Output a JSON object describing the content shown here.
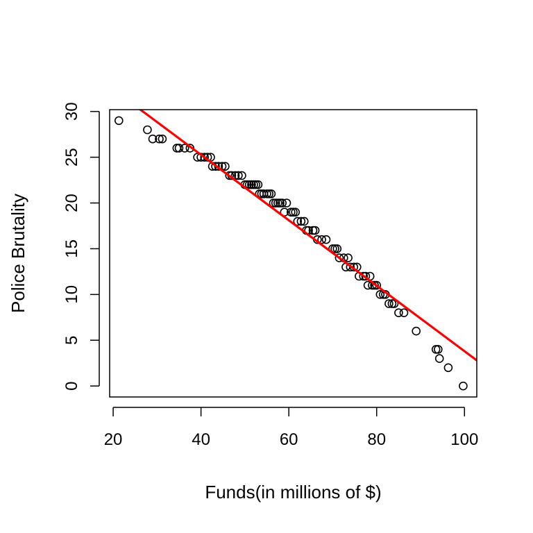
{
  "chart_data": {
    "type": "scatter",
    "title": "",
    "xlabel": "Funds(in millions of $)",
    "ylabel": "Police Brutality",
    "xlim": [
      19.2,
      102.8
    ],
    "ylim": [
      -1.2,
      30.2
    ],
    "xticks": [
      20,
      40,
      60,
      80,
      100
    ],
    "yticks": [
      0,
      5,
      10,
      15,
      20,
      25,
      30
    ],
    "grid": false,
    "legend": "none",
    "point_color": "#000000",
    "fit_line": {
      "color": "#ff0000",
      "x": [
        19.2,
        102.8
      ],
      "y": [
        32.7,
        2.8
      ]
    },
    "x": [
      21.3,
      27.8,
      29.0,
      30.5,
      31.2,
      34.5,
      35.0,
      36.3,
      37.5,
      39.2,
      40.0,
      40.8,
      41.5,
      42.2,
      42.6,
      43.3,
      44.0,
      44.8,
      45.5,
      46.5,
      47.0,
      47.8,
      48.5,
      49.3,
      50.0,
      50.5,
      51.0,
      51.5,
      52.0,
      52.5,
      53.0,
      53.3,
      53.8,
      54.3,
      55.0,
      55.5,
      56.0,
      56.5,
      57.0,
      57.5,
      58.0,
      58.5,
      59.0,
      59.5,
      60.5,
      61.0,
      61.5,
      62.0,
      62.8,
      63.5,
      64.0,
      64.5,
      65.5,
      66.0,
      66.5,
      67.5,
      68.5,
      70.0,
      70.5,
      71.0,
      71.5,
      72.5,
      73.0,
      73.5,
      74.0,
      74.8,
      75.5,
      76.0,
      77.0,
      77.5,
      78.0,
      78.5,
      79.0,
      79.5,
      80.0,
      80.8,
      81.5,
      82.0,
      82.8,
      83.5,
      84.0,
      85.0,
      86.2,
      89.0,
      93.5,
      94.0,
      94.3,
      96.3,
      99.7
    ],
    "y": [
      29,
      28,
      27,
      27,
      27,
      26,
      26,
      26,
      26,
      25,
      25,
      25,
      25,
      25,
      24,
      24,
      24,
      24,
      24,
      23,
      23,
      23,
      23,
      23,
      22,
      22,
      22,
      22,
      22,
      22,
      22,
      21,
      21,
      21,
      21,
      21,
      21,
      20,
      20,
      20,
      20,
      20,
      19,
      20,
      19,
      19,
      19,
      18,
      18,
      18,
      17,
      17,
      17,
      17,
      16,
      16,
      16,
      15,
      15,
      15,
      14,
      14,
      13,
      14,
      13,
      13,
      13,
      12,
      12,
      12,
      11,
      12,
      11,
      11,
      11,
      10,
      10,
      10,
      9,
      9,
      9,
      8,
      8,
      6,
      4,
      4,
      3,
      2,
      0
    ]
  }
}
